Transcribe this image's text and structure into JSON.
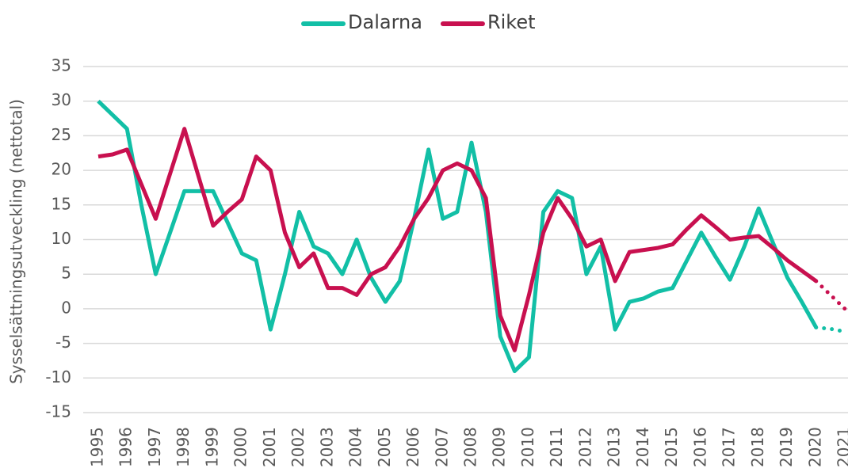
{
  "chart_data": {
    "type": "line",
    "y_label": "Sysselsättningsutveckling (nettotal)",
    "x": [
      1995,
      1995.5,
      1996,
      1996.5,
      1997,
      1997.5,
      1998,
      1998.5,
      1999,
      1999.5,
      2000,
      2000.5,
      2001,
      2001.5,
      2002,
      2002.5,
      2003,
      2003.5,
      2004,
      2004.5,
      2005,
      2005.5,
      2006,
      2006.5,
      2007,
      2007.5,
      2008,
      2008.5,
      2009,
      2009.5,
      2010,
      2010.5,
      2011,
      2011.5,
      2012,
      2012.5,
      2013,
      2013.5,
      2014,
      2014.5,
      2015,
      2015.5,
      2016,
      2016.5,
      2017,
      2017.5,
      2018,
      2018.5,
      2019,
      2019.5,
      2020,
      2020.5,
      2021
    ],
    "series": [
      {
        "name": "Dalarna",
        "color": "#12bfa6",
        "values": [
          30,
          28,
          26,
          15,
          5,
          11,
          17,
          17,
          17,
          12.5,
          8,
          7,
          -3,
          5,
          14,
          9,
          8,
          5,
          10,
          4.5,
          1,
          4,
          13,
          23,
          13,
          14,
          24,
          14,
          -4,
          -9,
          -7,
          14,
          17,
          16,
          5,
          9,
          -3,
          1,
          1.5,
          2.5,
          3,
          7,
          11,
          7.5,
          4.2,
          9,
          14.5,
          9.5,
          4.5,
          1,
          -2.7,
          -2.9,
          -3.3
        ]
      },
      {
        "name": "Riket",
        "color": "#c8104f",
        "values": [
          22,
          22.3,
          23,
          18,
          13,
          19.5,
          26,
          19,
          12,
          14,
          15.8,
          22,
          20,
          11,
          6,
          8,
          3,
          3,
          2,
          5,
          6,
          9,
          13,
          16,
          20,
          21,
          20,
          16,
          -1,
          -6,
          2,
          11,
          16,
          13,
          9,
          10,
          4,
          8.2,
          8.5,
          8.8,
          9.3,
          11.5,
          13.5,
          11.8,
          10,
          10.3,
          10.5,
          8.8,
          7,
          5.5,
          4,
          2,
          0
        ]
      }
    ],
    "dotted_from_x": 2020,
    "xlim": [
      1995,
      2021
    ],
    "xticks": [
      1995,
      1996,
      1997,
      1998,
      1999,
      2000,
      2001,
      2002,
      2003,
      2004,
      2005,
      2006,
      2007,
      2008,
      2009,
      2010,
      2011,
      2012,
      2013,
      2014,
      2015,
      2016,
      2017,
      2018,
      2019,
      2020,
      2021
    ],
    "ylim": [
      -15,
      35
    ],
    "yticks": [
      -15,
      -10,
      -5,
      0,
      5,
      10,
      15,
      20,
      25,
      30,
      35
    ],
    "grid": true,
    "legend": "top"
  }
}
